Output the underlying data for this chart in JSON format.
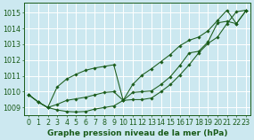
{
  "xlabel": "Graphe pression niveau de la mer (hPa)",
  "background_color": "#cce8f0",
  "grid_color": "#ffffff",
  "line_color": "#1a5c1a",
  "xlim": [
    -0.5,
    23.5
  ],
  "ylim": [
    1008.5,
    1015.6
  ],
  "yticks": [
    1009,
    1010,
    1011,
    1012,
    1013,
    1014,
    1015
  ],
  "xticks": [
    0,
    1,
    2,
    3,
    4,
    5,
    6,
    7,
    8,
    9,
    10,
    11,
    12,
    13,
    14,
    15,
    16,
    17,
    18,
    19,
    20,
    21,
    22,
    23
  ],
  "series1": [
    1009.8,
    1009.35,
    1009.0,
    1008.85,
    1008.75,
    1008.72,
    1008.75,
    1008.9,
    1009.0,
    1009.1,
    1009.45,
    1009.5,
    1009.5,
    1009.6,
    1010.0,
    1010.45,
    1011.05,
    1011.7,
    1012.45,
    1013.05,
    1013.45,
    1014.3,
    1015.05,
    1015.15
  ],
  "series2": [
    1009.8,
    1009.35,
    1009.0,
    1009.2,
    1009.45,
    1009.55,
    1009.65,
    1009.8,
    1009.95,
    1010.0,
    1009.45,
    1009.95,
    1010.0,
    1010.05,
    1010.45,
    1010.95,
    1011.65,
    1012.45,
    1012.55,
    1013.15,
    1014.35,
    1014.45,
    1014.3,
    1015.1
  ],
  "series3": [
    1009.8,
    1009.35,
    1009.0,
    1010.3,
    1010.8,
    1011.1,
    1011.35,
    1011.5,
    1011.6,
    1011.7,
    1009.45,
    1010.45,
    1011.05,
    1011.45,
    1011.9,
    1012.35,
    1012.9,
    1013.25,
    1013.45,
    1013.85,
    1014.5,
    1015.15,
    1014.3,
    1015.1
  ],
  "xlabel_color": "#1a5c1a",
  "xlabel_fontsize": 6.5,
  "tick_fontsize": 5.8
}
